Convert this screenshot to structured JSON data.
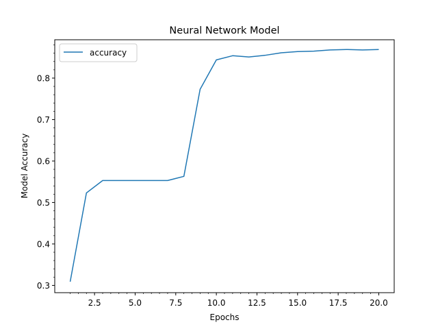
{
  "chart_data": {
    "type": "line",
    "title": "Neural Network Model",
    "xlabel": "Epochs",
    "ylabel": "Model Accuracy",
    "xlim": [
      0.05,
      20.95
    ],
    "ylim": [
      0.2825,
      0.8925
    ],
    "xticks": [
      2.5,
      5.0,
      7.5,
      10.0,
      12.5,
      15.0,
      17.5,
      20.0
    ],
    "xtick_labels": [
      "2.5",
      "5.0",
      "7.5",
      "10.0",
      "12.5",
      "15.0",
      "17.5",
      "20.0"
    ],
    "yticks": [
      0.3,
      0.4,
      0.5,
      0.6,
      0.7,
      0.8
    ],
    "ytick_labels": [
      "0.3",
      "0.4",
      "0.5",
      "0.6",
      "0.7",
      "0.8"
    ],
    "grid": false,
    "legend_position": "upper-left",
    "series": [
      {
        "name": "accuracy",
        "color": "#1f77b4",
        "x": [
          1,
          2,
          3,
          4,
          5,
          6,
          7,
          8,
          9,
          10,
          11,
          12,
          13,
          14,
          15,
          16,
          17,
          18,
          19,
          20
        ],
        "y": [
          0.309,
          0.523,
          0.553,
          0.553,
          0.553,
          0.553,
          0.553,
          0.563,
          0.773,
          0.844,
          0.854,
          0.851,
          0.855,
          0.861,
          0.864,
          0.865,
          0.868,
          0.869,
          0.868,
          0.869
        ]
      }
    ]
  }
}
